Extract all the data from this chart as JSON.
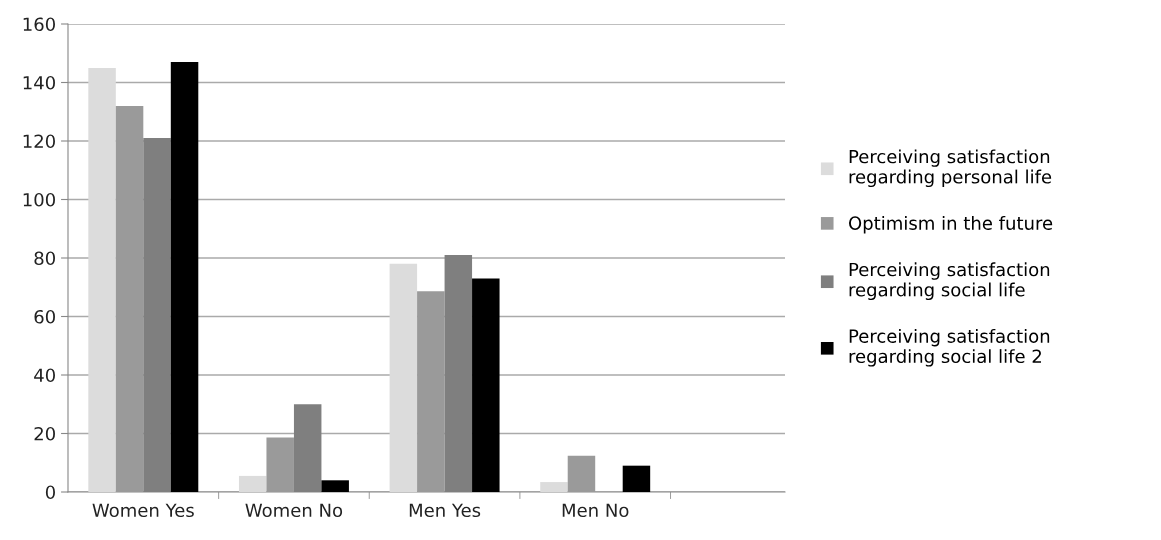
{
  "chart_data": {
    "type": "bar",
    "categories": [
      "Women Yes",
      "Women No",
      "Men Yes",
      "Men No",
      null
    ],
    "series": [
      {
        "name": "Perceiving satisfaction regarding personal life",
        "color": "#dcdcdc",
        "values": [
          145,
          5.5,
          78,
          3.4,
          null
        ]
      },
      {
        "name": "Optimism in the future",
        "color": "#9a9a9a",
        "values": [
          132,
          18.6,
          68.6,
          12.4,
          null
        ]
      },
      {
        "name": "Perceiving satisfaction regarding social life",
        "color": "#7f7f7f",
        "values": [
          121,
          30,
          81,
          null,
          null
        ]
      },
      {
        "name": "Perceiving satisfaction regarding social life 2",
        "color": "#000000",
        "values": [
          147,
          4,
          73,
          9,
          null
        ]
      }
    ],
    "ylim": [
      0,
      160
    ],
    "yticks": [
      0,
      20,
      40,
      60,
      80,
      100,
      120,
      140,
      160
    ],
    "grid": "y",
    "legend": "right"
  }
}
